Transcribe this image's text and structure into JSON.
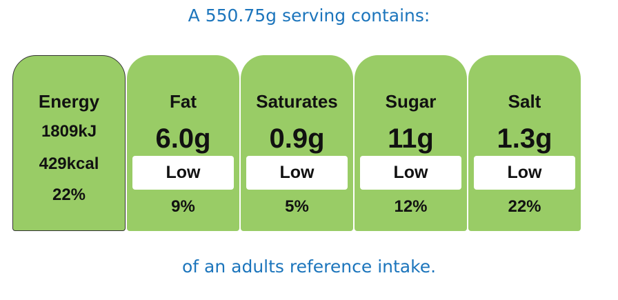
{
  "header": {
    "title": "A 550.75g serving contains:"
  },
  "energy": {
    "label": "Energy",
    "kj": "1809kJ",
    "kcal": "429kcal",
    "percent": "22%"
  },
  "nutrients": [
    {
      "name": "Fat",
      "amount": "6.0g",
      "level": "Low",
      "percent": "9%"
    },
    {
      "name": "Saturates",
      "amount": "0.9g",
      "level": "Low",
      "percent": "5%"
    },
    {
      "name": "Sugar",
      "amount": "11g",
      "level": "Low",
      "percent": "12%"
    },
    {
      "name": "Salt",
      "amount": "1.3g",
      "level": "Low",
      "percent": "22%"
    }
  ],
  "footer": {
    "text": "of an adults reference intake."
  }
}
